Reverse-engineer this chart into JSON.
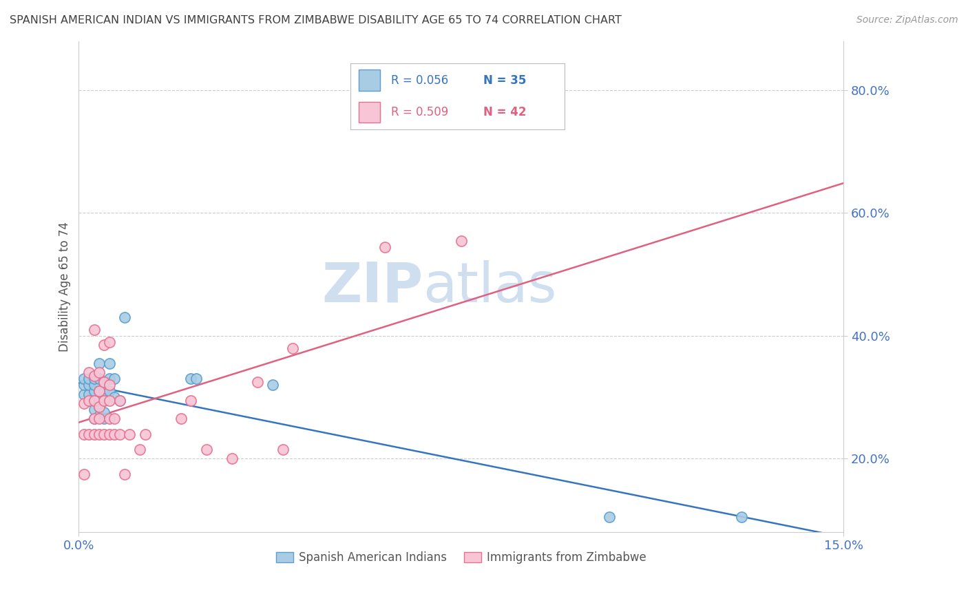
{
  "title": "SPANISH AMERICAN INDIAN VS IMMIGRANTS FROM ZIMBABWE DISABILITY AGE 65 TO 74 CORRELATION CHART",
  "source": "Source: ZipAtlas.com",
  "ylabel": "Disability Age 65 to 74",
  "y_ticks": [
    0.2,
    0.4,
    0.6,
    0.8
  ],
  "y_tick_labels": [
    "20.0%",
    "40.0%",
    "60.0%",
    "80.0%"
  ],
  "x_lim": [
    0.0,
    0.15
  ],
  "y_lim": [
    0.08,
    0.88
  ],
  "series1_label": "Spanish American Indians",
  "series1_R": "0.056",
  "series1_N": "35",
  "series1_color": "#a8cce4",
  "series1_edge": "#5b9ecf",
  "series2_label": "Immigrants from Zimbabwe",
  "series2_R": "0.509",
  "series2_N": "42",
  "series2_color": "#f7c5d5",
  "series2_edge": "#e87090",
  "regression1_color": "#3575c0",
  "regression2_color": "#e06080",
  "watermark_zip": "ZIP",
  "watermark_atlas": "atlas",
  "watermark_color": "#d0dff0",
  "background_color": "#ffffff",
  "grid_color": "#cccccc",
  "title_color": "#404040",
  "axis_label_color": "#4472c4",
  "legend_border_color": "#bbbbbb",
  "series1_x": [
    0.001,
    0.001,
    0.001,
    0.002,
    0.002,
    0.002,
    0.002,
    0.003,
    0.003,
    0.003,
    0.003,
    0.003,
    0.003,
    0.004,
    0.004,
    0.004,
    0.004,
    0.004,
    0.005,
    0.005,
    0.005,
    0.005,
    0.005,
    0.006,
    0.006,
    0.006,
    0.007,
    0.007,
    0.008,
    0.009,
    0.022,
    0.023,
    0.038,
    0.104,
    0.13
  ],
  "series1_y": [
    0.305,
    0.32,
    0.33,
    0.295,
    0.305,
    0.32,
    0.33,
    0.265,
    0.28,
    0.295,
    0.31,
    0.32,
    0.33,
    0.27,
    0.285,
    0.31,
    0.33,
    0.355,
    0.265,
    0.275,
    0.295,
    0.31,
    0.325,
    0.31,
    0.33,
    0.355,
    0.3,
    0.33,
    0.295,
    0.43,
    0.33,
    0.33,
    0.32,
    0.105,
    0.105
  ],
  "series2_x": [
    0.001,
    0.001,
    0.001,
    0.002,
    0.002,
    0.002,
    0.003,
    0.003,
    0.003,
    0.003,
    0.003,
    0.004,
    0.004,
    0.004,
    0.004,
    0.004,
    0.005,
    0.005,
    0.005,
    0.005,
    0.006,
    0.006,
    0.006,
    0.006,
    0.006,
    0.007,
    0.007,
    0.008,
    0.008,
    0.009,
    0.01,
    0.012,
    0.013,
    0.02,
    0.022,
    0.025,
    0.03,
    0.035,
    0.04,
    0.042,
    0.06,
    0.075
  ],
  "series2_y": [
    0.175,
    0.24,
    0.29,
    0.24,
    0.295,
    0.34,
    0.24,
    0.265,
    0.295,
    0.335,
    0.41,
    0.24,
    0.265,
    0.285,
    0.31,
    0.34,
    0.24,
    0.295,
    0.325,
    0.385,
    0.24,
    0.265,
    0.295,
    0.32,
    0.39,
    0.24,
    0.265,
    0.24,
    0.295,
    0.175,
    0.24,
    0.215,
    0.24,
    0.265,
    0.295,
    0.215,
    0.2,
    0.325,
    0.215,
    0.38,
    0.545,
    0.555
  ]
}
